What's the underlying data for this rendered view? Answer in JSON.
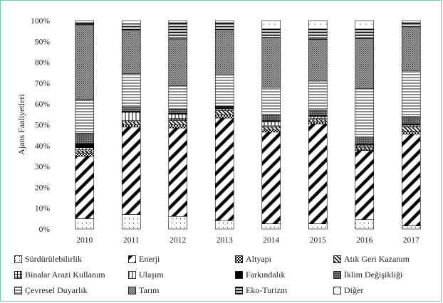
{
  "chart_data": {
    "type": "bar",
    "stacked": true,
    "percent": true,
    "categories": [
      "2010",
      "2011",
      "2012",
      "2013",
      "2014",
      "2015",
      "2016",
      "2017"
    ],
    "ylabel": "Ajans Faaliyetleri",
    "xlabel": "",
    "ylim": [
      0,
      100
    ],
    "yticks": [
      "0%",
      "10%",
      "20%",
      "30%",
      "40%",
      "50%",
      "60%",
      "70%",
      "80%",
      "90%",
      "100%"
    ],
    "grid": false,
    "legend_position": "bottom",
    "series": [
      {
        "name": "Sürdürülebilirlik",
        "pattern": "dots",
        "values": [
          5,
          7,
          6,
          4,
          2.5,
          2.5,
          4.5,
          1.5
        ]
      },
      {
        "name": "Enerji",
        "pattern": "wide-diagonal",
        "values": [
          30,
          42,
          42,
          49,
          44,
          48,
          33,
          44
        ]
      },
      {
        "name": "Altyapı",
        "pattern": "checker",
        "values": [
          1.5,
          1,
          1.5,
          1.5,
          1,
          1,
          0.5,
          1.5
        ]
      },
      {
        "name": "Atık Geri Kazanım",
        "pattern": "dense-diagonal",
        "values": [
          1,
          1.5,
          2,
          2,
          1.5,
          1,
          1,
          2
        ]
      },
      {
        "name": "Binalar Arazi Kullanım",
        "pattern": "grid",
        "values": [
          0.5,
          0.5,
          1,
          0.5,
          0.5,
          0.5,
          0.5,
          0.5
        ]
      },
      {
        "name": "Ulaşım",
        "pattern": "vertical",
        "values": [
          1,
          4,
          2,
          0.5,
          2,
          1,
          0.5,
          0.5
        ]
      },
      {
        "name": "Farkındalık",
        "pattern": "solid",
        "values": [
          2,
          0.5,
          0.5,
          0.5,
          0.5,
          0.5,
          0.5,
          0.5
        ]
      },
      {
        "name": "İklim Değişikliği",
        "pattern": "crosshatch",
        "values": [
          5,
          2,
          2,
          0.5,
          3,
          2.5,
          3.5,
          3.5
        ]
      },
      {
        "name": "Çevresel Duyarlık",
        "pattern": "horizontal",
        "values": [
          16,
          16,
          11,
          15,
          13,
          14,
          23,
          22
        ]
      },
      {
        "name": "Tarım",
        "pattern": "dense-cross",
        "values": [
          36,
          21,
          22,
          21,
          24,
          20,
          24,
          21
        ]
      },
      {
        "name": "Eko-Turizm",
        "pattern": "thick-horizontal",
        "values": [
          1,
          3,
          8,
          4,
          4,
          5,
          4.5,
          2
        ]
      },
      {
        "name": "Diğer",
        "pattern": "dots-sparse",
        "values": [
          1,
          1.5,
          1,
          1,
          4,
          4,
          4,
          1
        ]
      }
    ]
  }
}
